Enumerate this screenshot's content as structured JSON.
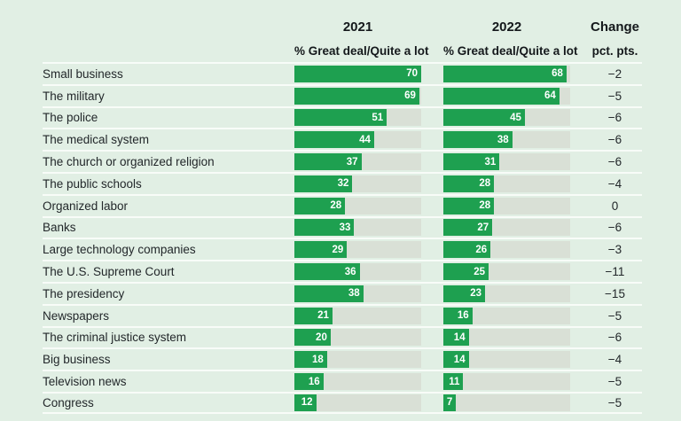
{
  "page": {
    "background_color": "#e1efe4",
    "separator_color": "#f8fcf8"
  },
  "header": {
    "col_2021": "2021",
    "col_2022": "2022",
    "col_change": "Change",
    "sub_2021": "% Great deal/Quite a lot",
    "sub_2022": "% Great deal/Quite a lot",
    "sub_change": "pct. pts."
  },
  "chart_data": {
    "type": "bar",
    "orientation": "horizontal",
    "title": "",
    "unit": "% Great deal/Quite a lot",
    "change_unit": "pct. pts.",
    "axis_max": 70,
    "legend_position": "column-headers",
    "grid": false,
    "colors": {
      "bar_fill": "#1ea050",
      "bar_track": "#d9e0d6",
      "background": "#e1efe4"
    },
    "categories": [
      "Small business",
      "The military",
      "The police",
      "The medical system",
      "The church or organized religion",
      "The public schools",
      "Organized labor",
      "Banks",
      "Large technology companies",
      "The U.S. Supreme Court",
      "The presidency",
      "Newspapers",
      "The criminal justice system",
      "Big business",
      "Television news",
      "Congress"
    ],
    "series": [
      {
        "name": "2021",
        "values": [
          70,
          69,
          51,
          44,
          37,
          32,
          28,
          33,
          29,
          36,
          38,
          21,
          20,
          18,
          16,
          12
        ]
      },
      {
        "name": "2022",
        "values": [
          68,
          64,
          45,
          38,
          31,
          28,
          28,
          27,
          26,
          25,
          23,
          16,
          14,
          14,
          11,
          7
        ]
      }
    ],
    "change_pct_pts": [
      -2,
      -5,
      -6,
      -6,
      -6,
      -4,
      0,
      -6,
      -3,
      -11,
      -15,
      -5,
      -6,
      -4,
      -5,
      -5
    ]
  },
  "rows": [
    {
      "label": "Small business",
      "v2021": 70,
      "v2022": 68,
      "change": "−2"
    },
    {
      "label": "The military",
      "v2021": 69,
      "v2022": 64,
      "change": "−5"
    },
    {
      "label": "The police",
      "v2021": 51,
      "v2022": 45,
      "change": "−6"
    },
    {
      "label": "The medical system",
      "v2021": 44,
      "v2022": 38,
      "change": "−6"
    },
    {
      "label": "The church or organized religion",
      "v2021": 37,
      "v2022": 31,
      "change": "−6"
    },
    {
      "label": "The public schools",
      "v2021": 32,
      "v2022": 28,
      "change": "−4"
    },
    {
      "label": "Organized labor",
      "v2021": 28,
      "v2022": 28,
      "change": "0"
    },
    {
      "label": "Banks",
      "v2021": 33,
      "v2022": 27,
      "change": "−6"
    },
    {
      "label": "Large technology companies",
      "v2021": 29,
      "v2022": 26,
      "change": "−3"
    },
    {
      "label": "The U.S. Supreme Court",
      "v2021": 36,
      "v2022": 25,
      "change": "−11"
    },
    {
      "label": "The presidency",
      "v2021": 38,
      "v2022": 23,
      "change": "−15"
    },
    {
      "label": "Newspapers",
      "v2021": 21,
      "v2022": 16,
      "change": "−5"
    },
    {
      "label": "The criminal justice system",
      "v2021": 20,
      "v2022": 14,
      "change": "−6"
    },
    {
      "label": "Big business",
      "v2021": 18,
      "v2022": 14,
      "change": "−4"
    },
    {
      "label": "Television news",
      "v2021": 16,
      "v2022": 11,
      "change": "−5"
    },
    {
      "label": "Congress",
      "v2021": 12,
      "v2022": 7,
      "change": "−5"
    }
  ]
}
